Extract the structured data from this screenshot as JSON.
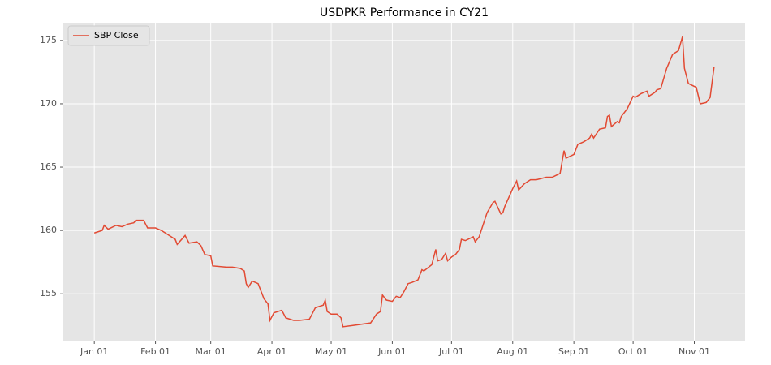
{
  "chart_data": {
    "type": "line",
    "title": "USDPKR Performance in CY21",
    "x": [
      "Jan 01",
      "Jan 05",
      "Jan 06",
      "Jan 08",
      "Jan 12",
      "Jan 15",
      "Jan 18",
      "Jan 21",
      "Jan 22",
      "Jan 26",
      "Jan 28",
      "Feb 01",
      "Feb 04",
      "Feb 08",
      "Feb 11",
      "Feb 12",
      "Feb 16",
      "Feb 18",
      "Feb 22",
      "Feb 24",
      "Feb 26",
      "Mar 01",
      "Mar 02",
      "Mar 09",
      "Mar 12",
      "Mar 16",
      "Mar 18",
      "Mar 19",
      "Mar 20",
      "Mar 22",
      "Mar 25",
      "Mar 28",
      "Mar 30",
      "Mar 31",
      "Apr 02",
      "Apr 06",
      "Apr 08",
      "Apr 12",
      "Apr 15",
      "Apr 20",
      "Apr 23",
      "Apr 27",
      "Apr 28",
      "Apr 29",
      "May 01",
      "May 04",
      "May 06",
      "May 07",
      "May 12",
      "May 21",
      "May 24",
      "May 26",
      "May 27",
      "May 29",
      "Jun 01",
      "Jun 03",
      "Jun 05",
      "Jun 07",
      "Jun 09",
      "Jun 11",
      "Jun 14",
      "Jun 16",
      "Jun 17",
      "Jun 21",
      "Jun 23",
      "Jun 24",
      "Jun 26",
      "Jun 28",
      "Jun 29",
      "Jul 01",
      "Jul 03",
      "Jul 05",
      "Jul 06",
      "Jul 08",
      "Jul 12",
      "Jul 13",
      "Jul 15",
      "Jul 19",
      "Jul 22",
      "Jul 23",
      "Jul 26",
      "Jul 27",
      "Jul 28",
      "Jul 30",
      "Aug 01",
      "Aug 03",
      "Aug 04",
      "Aug 07",
      "Aug 10",
      "Aug 13",
      "Aug 18",
      "Aug 21",
      "Aug 25",
      "Aug 27",
      "Aug 28",
      "Sep 01",
      "Sep 03",
      "Sep 06",
      "Sep 09",
      "Sep 10",
      "Sep 11",
      "Sep 14",
      "Sep 17",
      "Sep 18",
      "Sep 19",
      "Sep 20",
      "Sep 23",
      "Sep 24",
      "Sep 25",
      "Sep 28",
      "Oct 01",
      "Oct 02",
      "Oct 05",
      "Oct 08",
      "Oct 09",
      "Oct 12",
      "Oct 13",
      "Oct 15",
      "Oct 18",
      "Oct 21",
      "Oct 24",
      "Oct 26",
      "Oct 27",
      "Oct 29",
      "Nov 02",
      "Nov 04",
      "Nov 07",
      "Nov 09",
      "Nov 11"
    ],
    "series": [
      {
        "name": "SBP Close",
        "color": "#e24a33",
        "values": [
          159.8,
          160.0,
          160.4,
          160.1,
          160.4,
          160.3,
          160.5,
          160.6,
          160.8,
          160.8,
          160.2,
          160.2,
          160.0,
          159.6,
          159.3,
          158.9,
          159.6,
          159.0,
          159.1,
          158.8,
          158.1,
          158.0,
          157.2,
          157.1,
          157.1,
          157.0,
          156.8,
          155.8,
          155.5,
          156.0,
          155.8,
          154.6,
          154.2,
          152.9,
          153.5,
          153.7,
          153.1,
          152.9,
          152.9,
          153.0,
          153.9,
          154.1,
          154.5,
          153.6,
          153.4,
          153.4,
          153.1,
          152.4,
          152.5,
          152.7,
          153.4,
          153.6,
          154.9,
          154.5,
          154.4,
          154.8,
          154.7,
          155.2,
          155.8,
          155.9,
          156.1,
          156.9,
          156.8,
          157.3,
          158.5,
          157.6,
          157.7,
          158.2,
          157.6,
          157.9,
          158.1,
          158.5,
          159.3,
          159.2,
          159.5,
          159.1,
          159.5,
          161.4,
          162.2,
          162.3,
          161.3,
          161.4,
          161.9,
          162.6,
          163.3,
          163.9,
          163.2,
          163.7,
          164.0,
          164.0,
          164.2,
          164.2,
          164.5,
          166.3,
          165.7,
          166.0,
          166.8,
          167.0,
          167.3,
          167.6,
          167.3,
          168.0,
          168.1,
          169.0,
          169.1,
          168.2,
          168.6,
          168.5,
          169.0,
          169.6,
          170.6,
          170.5,
          170.8,
          171.0,
          170.6,
          170.9,
          171.1,
          171.2,
          172.8,
          173.9,
          174.2,
          175.3,
          172.8,
          171.6,
          171.3,
          170.0,
          170.1,
          170.5,
          172.9
        ]
      }
    ],
    "xticks": [
      "Jan 01",
      "Feb 01",
      "Mar 01",
      "Apr 01",
      "May 01",
      "Jun 01",
      "Jul 01",
      "Aug 01",
      "Sep 01",
      "Oct 01",
      "Nov 01"
    ],
    "ylim": [
      151.3,
      176.4
    ],
    "yticks": [
      155,
      160,
      165,
      170,
      175
    ],
    "grid": true,
    "legend": "upper left"
  }
}
